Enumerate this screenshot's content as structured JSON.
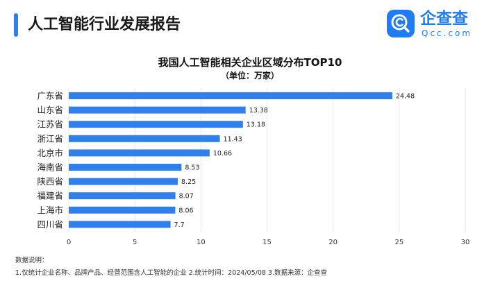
{
  "header": {
    "title": "人工智能行业发展报告",
    "accent_color": "#2f80ed"
  },
  "logo": {
    "name": "企查查",
    "domain": "Qcc.com",
    "icon": "qcc-magnifier-logo-icon",
    "color": "#1f7cf3"
  },
  "chart_data": {
    "type": "bar",
    "orientation": "horizontal",
    "title": "我国人工智能相关企业区域分布TOP10",
    "subtitle": "（单位：万家）",
    "categories": [
      "广东省",
      "山东省",
      "江苏省",
      "浙江省",
      "北京市",
      "海南省",
      "陕西省",
      "福建省",
      "上海市",
      "四川省"
    ],
    "values": [
      24.48,
      13.38,
      13.18,
      11.43,
      10.66,
      8.53,
      8.25,
      8.07,
      8.06,
      7.7
    ],
    "value_labels": [
      "24.48",
      "13.38",
      "13.18",
      "11.43",
      "10.66",
      "8.53",
      "8.25",
      "8.07",
      "8.06",
      "7.7"
    ],
    "xlim": [
      0,
      30
    ],
    "x_ticks": [
      0,
      5,
      10,
      15,
      20,
      25,
      30
    ],
    "bar_color": "#2f80ed",
    "grid": "vertical"
  },
  "notes": {
    "heading": "数据说明：",
    "line": "1.仅统计企业名称、品牌产品、经营范围含人工智能的企业   2.统计时间：2024/05/08   3.数据来源：企查查"
  }
}
